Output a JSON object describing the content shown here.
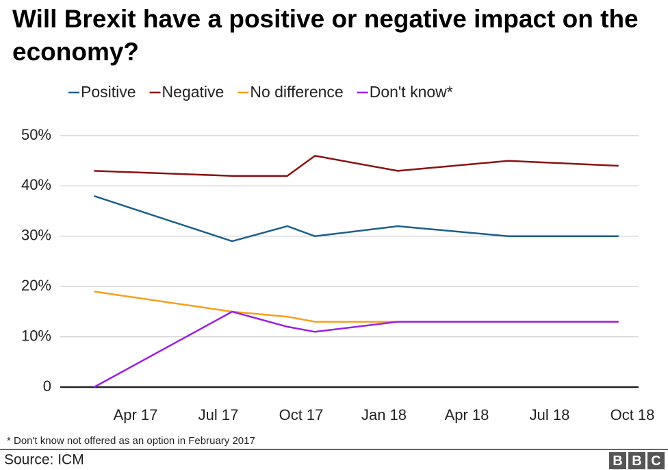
{
  "chart_data": {
    "type": "line",
    "title": "Will Brexit have a positive or negative impact on the economy?",
    "x": [
      "2017-02",
      "2017-07",
      "2017-09",
      "2017-10",
      "2018-01",
      "2018-05",
      "2018-09"
    ],
    "series": [
      {
        "name": "Positive",
        "color": "#1d5f8a",
        "values": [
          38,
          29,
          32,
          30,
          32,
          30,
          30
        ]
      },
      {
        "name": "Negative",
        "color": "#8a1212",
        "values": [
          43,
          42,
          42,
          46,
          43,
          45,
          44
        ]
      },
      {
        "name": "No difference",
        "color": "#f5a01a",
        "values": [
          19,
          15,
          14,
          13,
          13,
          13,
          13
        ]
      },
      {
        "name": "Don't know*",
        "color": "#9a1fe6",
        "values": [
          0,
          15,
          12,
          11,
          13,
          13,
          13
        ]
      }
    ],
    "xlim": [
      "2017-01",
      "2018-10"
    ],
    "xticks": [
      {
        "value": "2017-04",
        "label": "Apr 17"
      },
      {
        "value": "2017-07",
        "label": "Jul 17"
      },
      {
        "value": "2017-10",
        "label": "Oct 17"
      },
      {
        "value": "2018-01",
        "label": "Jan 18"
      },
      {
        "value": "2018-04",
        "label": "Apr 18"
      },
      {
        "value": "2018-07",
        "label": "Jul 18"
      },
      {
        "value": "2018-10",
        "label": "Oct 18"
      }
    ],
    "ylim": [
      0,
      50
    ],
    "yticks": [
      0,
      {
        "value": 10,
        "label": "10%"
      },
      {
        "value": 20,
        "label": "20%"
      },
      {
        "value": 30,
        "label": "30%"
      },
      {
        "value": 40,
        "label": "40%"
      },
      {
        "value": 50,
        "label": "50%"
      }
    ],
    "grid": true,
    "footnote": "* Don't know not offered as an option in February 2017",
    "source": "Source: ICM",
    "logo": "BBC"
  }
}
